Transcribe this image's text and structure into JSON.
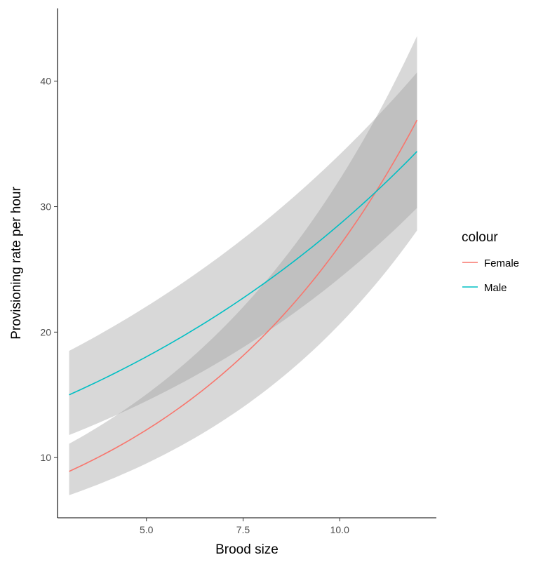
{
  "chart_data": {
    "type": "line",
    "title": "",
    "xlabel": "Brood size",
    "ylabel": "Provisioning rate per hour",
    "xlim": [
      2.7,
      12.5
    ],
    "ylim": [
      5.2,
      45.8
    ],
    "xticks": [
      5.0,
      7.5,
      10.0
    ],
    "xtick_labels": [
      "5.0",
      "7.5",
      "10.0"
    ],
    "yticks": [
      10,
      20,
      30,
      40
    ],
    "ytick_labels": [
      "10",
      "20",
      "30",
      "40"
    ],
    "grid": false,
    "legend": {
      "title": "colour",
      "position": "right",
      "entries": [
        "Female",
        "Male"
      ]
    },
    "series": [
      {
        "name": "Female",
        "color": "#F8766D",
        "x": [
          3,
          12
        ],
        "fit": "exponential",
        "y_start": 8.9,
        "y_end": 36.9,
        "ci_lower": [
          7.0,
          28.1
        ],
        "ci_upper": [
          11.1,
          43.6
        ]
      },
      {
        "name": "Male",
        "color": "#00BFC4",
        "x": [
          3,
          12
        ],
        "fit": "exponential",
        "y_start": 15.0,
        "y_end": 34.4,
        "ci_lower": [
          11.8,
          29.9
        ],
        "ci_upper": [
          18.5,
          40.7
        ]
      }
    ],
    "ribbon_color": "#999999",
    "ribbon_opacity": 0.38
  }
}
